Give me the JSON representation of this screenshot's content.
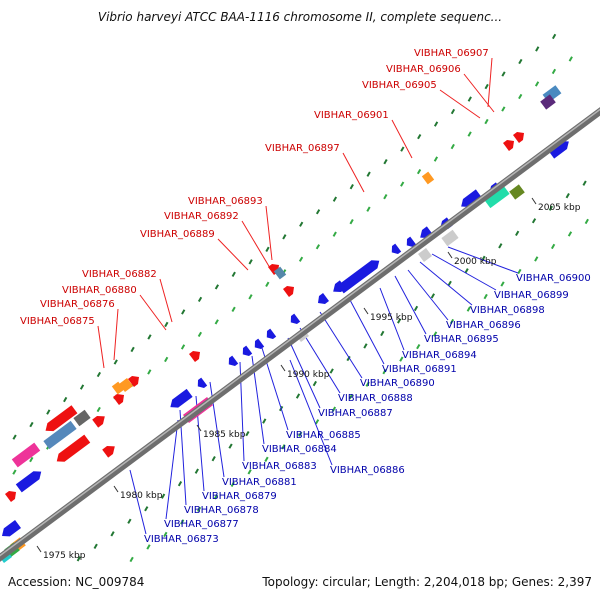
{
  "title": "Vibrio harveyi ATCC BAA-1116 chromosome II, complete sequenc...",
  "footer": {
    "accession": "Accession: NC_009784",
    "stats": "Topology: circular; Length: 2,204,018 bp; Genes: 2,397"
  },
  "colors": {
    "backbone": "#7a7a7a",
    "forward_gene": "#ee1111",
    "reverse_gene": "#1111dd",
    "label_red": "#cc0000",
    "label_blue": "#0000aa",
    "tick_green": "#228833"
  },
  "ticks": [
    "1975 kbp",
    "1980 kbp",
    "1985 kbp",
    "1990 kbp",
    "1995 kbp",
    "2000 kbp",
    "2005 kbp"
  ],
  "red_labels": [
    "VIBHAR_06907",
    "VIBHAR_06906",
    "VIBHAR_06905",
    "VIBHAR_06901",
    "VIBHAR_06897",
    "VIBHAR_06893",
    "VIBHAR_06892",
    "VIBHAR_06889",
    "VIBHAR_06882",
    "VIBHAR_06880",
    "VIBHAR_06876",
    "VIBHAR_06875"
  ],
  "blue_labels": [
    "VIBHAR_06900",
    "VIBHAR_06899",
    "VIBHAR_06898",
    "VIBHAR_06896",
    "VIBHAR_06895",
    "VIBHAR_06894",
    "VIBHAR_06891",
    "VIBHAR_06890",
    "VIBHAR_06888",
    "VIBHAR_06887",
    "VIBHAR_06885",
    "VIBHAR_06884",
    "VIBHAR_06886",
    "VIBHAR_06883",
    "VIBHAR_06881",
    "VIBHAR_06879",
    "VIBHAR_06878",
    "VIBHAR_06877",
    "VIBHAR_06873"
  ]
}
